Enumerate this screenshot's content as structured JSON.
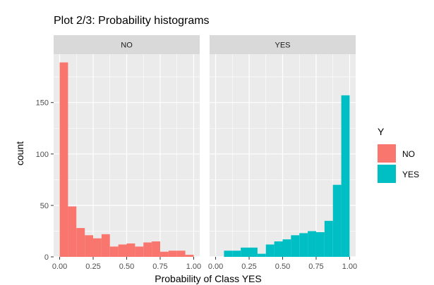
{
  "chart_data": {
    "type": "bar",
    "title": "Plot 2/3: Probability histograms",
    "xlabel": "Probability of Class  YES",
    "ylabel": "count",
    "xlim": [
      -0.045,
      1.045
    ],
    "ylim": [
      0,
      197
    ],
    "bin_width": 0.0625,
    "x_ticks": [
      {
        "value": 0.0,
        "label": "0.00"
      },
      {
        "value": 0.25,
        "label": "0.25"
      },
      {
        "value": 0.5,
        "label": "0.50"
      },
      {
        "value": 0.75,
        "label": "0.75"
      },
      {
        "value": 1.0,
        "label": "1.00"
      }
    ],
    "y_ticks": [
      {
        "value": 0,
        "label": "0"
      },
      {
        "value": 50,
        "label": "50"
      },
      {
        "value": 100,
        "label": "100"
      },
      {
        "value": 150,
        "label": "150"
      }
    ],
    "grid": true,
    "legend": {
      "title": "Y",
      "placement": "right"
    },
    "facets": [
      {
        "label": "NO",
        "color": "#F8766D",
        "bins": [
          0.0,
          0.0625,
          0.125,
          0.1875,
          0.25,
          0.3125,
          0.375,
          0.4375,
          0.5,
          0.5625,
          0.625,
          0.6875,
          0.75,
          0.8125,
          0.875,
          0.9375,
          1.0
        ],
        "values": [
          189,
          49,
          28,
          21,
          18,
          22,
          10,
          12,
          13,
          10,
          14,
          15,
          5,
          6,
          6,
          2
        ]
      },
      {
        "label": "YES",
        "color": "#00BFC4",
        "bins": [
          0.0,
          0.0625,
          0.125,
          0.1875,
          0.25,
          0.3125,
          0.375,
          0.4375,
          0.5,
          0.5625,
          0.625,
          0.6875,
          0.75,
          0.8125,
          0.875,
          0.9375,
          1.0
        ],
        "values": [
          0,
          6,
          6,
          9,
          9,
          3,
          12,
          15,
          17,
          21,
          23,
          25,
          24,
          35,
          70,
          157
        ]
      }
    ],
    "series": [
      {
        "name": "NO",
        "color": "#F8766D"
      },
      {
        "name": "YES",
        "color": "#00BFC4"
      }
    ]
  }
}
